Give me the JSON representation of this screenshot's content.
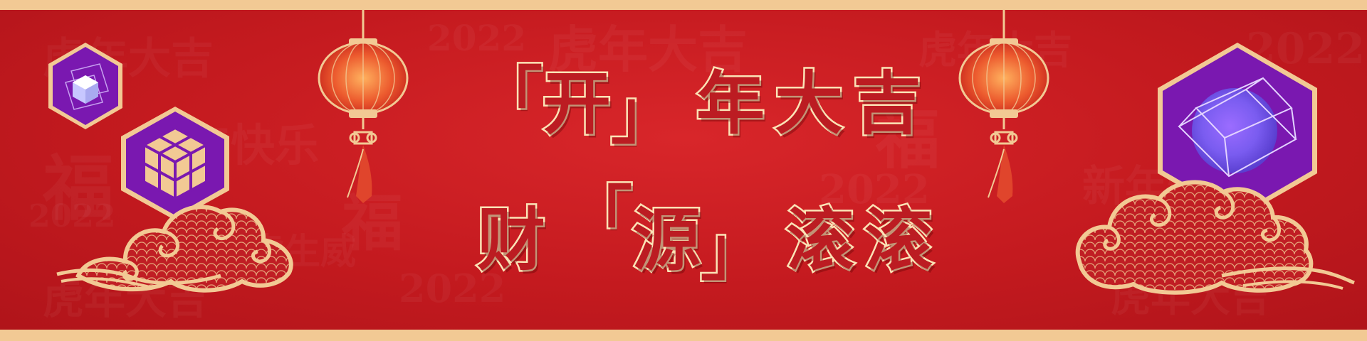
{
  "headline": {
    "line1": {
      "open": "「",
      "key": "开",
      "close": "」",
      "rest": [
        "年",
        "大",
        "吉"
      ]
    },
    "line2": {
      "first": "财",
      "open": "「",
      "key": "源",
      "close": "」",
      "rest": [
        "滚",
        "滚"
      ]
    }
  },
  "background": {
    "watermark": [
      "虎年大吉",
      "2022",
      "福",
      "新年快乐",
      "虎虎生威"
    ]
  },
  "colors": {
    "red": "#c41a1f",
    "gold": "#f2c994",
    "purple": "#7a18b0",
    "lantern": "#e0452c"
  },
  "icons": [
    "small-cube-hexagon-icon",
    "stacked-cubes-hexagon-icon",
    "large-cube-hexagon-icon",
    "lantern-icon",
    "cloud-icon"
  ]
}
